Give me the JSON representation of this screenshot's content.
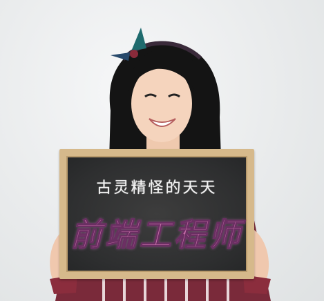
{
  "photo": {
    "subject": "woman-holding-chalkboard"
  },
  "chalkboard": {
    "subtitle": "古灵精怪的天天",
    "title": "前端工程师",
    "title_color": "#c36aa6",
    "subtitle_color": "#f2f2f2"
  }
}
